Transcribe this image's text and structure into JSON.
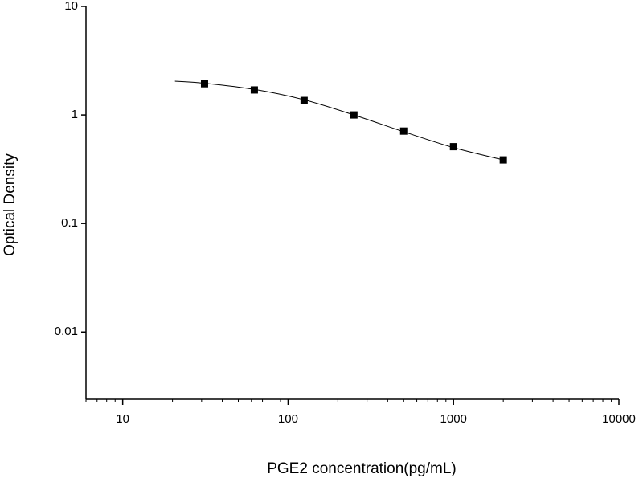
{
  "chart_data": {
    "type": "scatter",
    "xlabel": "PGE2 concentration(pg/mL)",
    "ylabel": "Optical Density",
    "xscale": "log",
    "yscale": "log",
    "xlim": [
      6,
      10000
    ],
    "ylim": [
      0.0024,
      10
    ],
    "xticks": [
      10,
      100,
      1000,
      10000
    ],
    "xminorticks": [
      6,
      7,
      8,
      9,
      20,
      30,
      40,
      50,
      60,
      70,
      80,
      90,
      200,
      300,
      400,
      500,
      600,
      700,
      800,
      900,
      2000,
      3000,
      4000,
      5000,
      6000,
      7000,
      8000,
      9000
    ],
    "yticks": [
      0.01,
      0.1,
      1,
      10
    ],
    "x": [
      31.25,
      62.5,
      125,
      250,
      500,
      1000,
      2000
    ],
    "values": [
      1.94,
      1.7,
      1.36,
      1.0,
      0.71,
      0.51,
      0.385
    ],
    "color": "#000000",
    "marker": "square",
    "fit": {
      "x": [
        20.7,
        31.25,
        62.5,
        125,
        250,
        500,
        1000,
        2000
      ],
      "values": [
        2.05,
        1.96,
        1.72,
        1.38,
        1.0,
        0.7,
        0.5,
        0.385
      ],
      "color": "#000000"
    }
  }
}
